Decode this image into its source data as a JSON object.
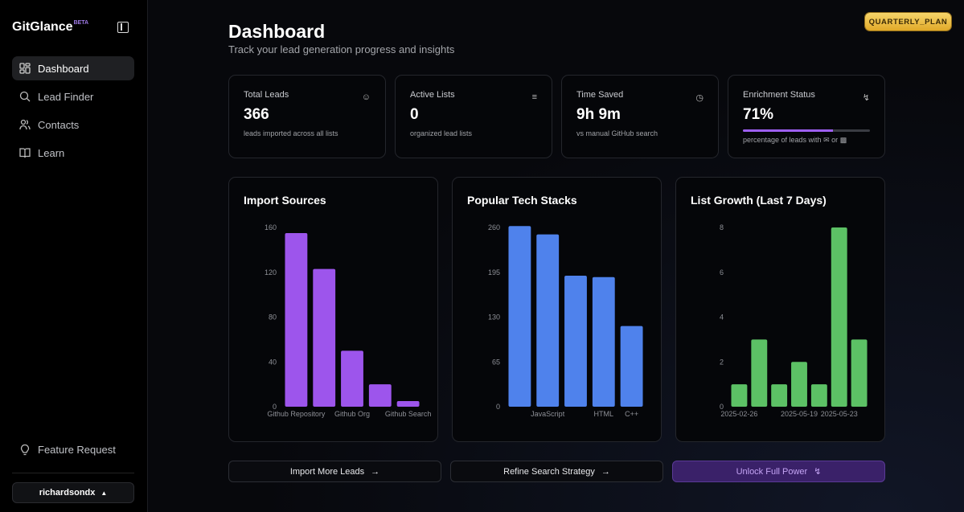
{
  "app": {
    "name": "GitGlance",
    "badge": "BETA"
  },
  "sidebar": {
    "items": [
      {
        "label": "Dashboard",
        "icon": "dashboard-icon"
      },
      {
        "label": "Lead Finder",
        "icon": "search-icon"
      },
      {
        "label": "Contacts",
        "icon": "users-icon"
      },
      {
        "label": "Learn",
        "icon": "book-icon"
      }
    ],
    "feature_request": "Feature Request",
    "user": "richardsondx"
  },
  "header": {
    "title": "Dashboard",
    "subtitle": "Track your lead generation progress and insights",
    "plan": "QUARTERLY_PLAN"
  },
  "stats": [
    {
      "title": "Total Leads",
      "value": "366",
      "desc": "leads imported across all lists"
    },
    {
      "title": "Active Lists",
      "value": "0",
      "desc": "organized lead lists"
    },
    {
      "title": "Time Saved",
      "value": "9h 9m",
      "desc": "vs manual GitHub search"
    },
    {
      "title": "Enrichment Status",
      "value": "71%",
      "desc": "percentage of leads with",
      "desc_or": "or",
      "progress": 71
    }
  ],
  "colors": {
    "purple": "#9d55ec",
    "blue": "#4f82ec",
    "green": "#5cc165"
  },
  "chart_data": [
    {
      "type": "bar",
      "title": "Import Sources",
      "categories": [
        "Github Repository",
        "",
        "Github Org",
        "",
        "Github Search"
      ],
      "values": [
        155,
        123,
        50,
        20,
        5
      ],
      "ylim": [
        0,
        160
      ],
      "yticks": [
        0,
        40,
        80,
        120,
        160
      ],
      "color": "#9d55ec"
    },
    {
      "type": "bar",
      "title": "Popular Tech Stacks",
      "categories": [
        "",
        "JavaScript",
        "",
        "HTML",
        "C++"
      ],
      "values": [
        262,
        250,
        190,
        188,
        117
      ],
      "ylim": [
        0,
        260
      ],
      "yticks": [
        0,
        65,
        130,
        195,
        260
      ],
      "color": "#4f82ec"
    },
    {
      "type": "bar",
      "title": "List Growth (Last 7 Days)",
      "categories": [
        "2025-02-26",
        "",
        "",
        "2025-05-19",
        "",
        "2025-05-23",
        ""
      ],
      "values": [
        1,
        3,
        1,
        2,
        1,
        8,
        3
      ],
      "ylim": [
        0,
        8
      ],
      "yticks": [
        0,
        2,
        4,
        6,
        8
      ],
      "color": "#5cc165"
    }
  ],
  "actions": [
    {
      "label": "Import More Leads"
    },
    {
      "label": "Refine Search Strategy"
    },
    {
      "label": "Unlock Full Power"
    }
  ]
}
